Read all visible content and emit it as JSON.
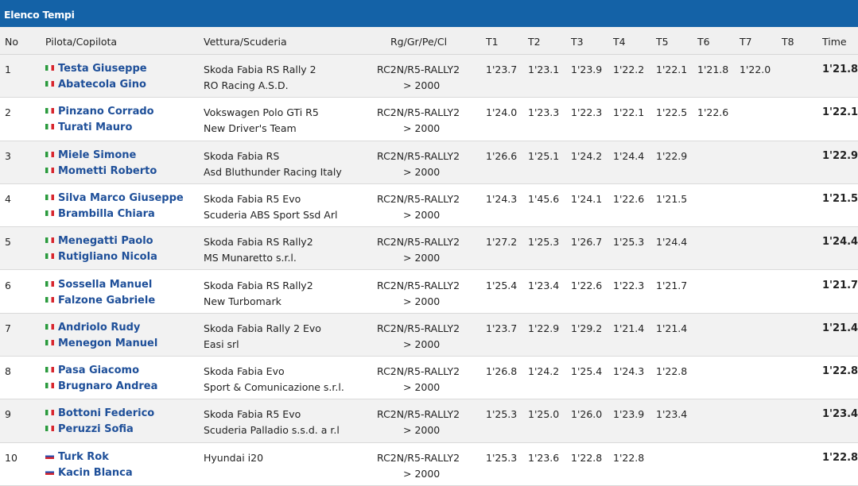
{
  "title": "Elenco Tempi",
  "headers": {
    "no": "No",
    "crew": "Pilota/Copilota",
    "car": "Vettura/Scuderia",
    "class": "Rg/Gr/Pe/Cl",
    "t1": "T1",
    "t2": "T2",
    "t3": "T3",
    "t4": "T4",
    "t5": "T5",
    "t6": "T6",
    "t7": "T7",
    "t8": "T8",
    "time": "Time"
  },
  "rows": [
    {
      "no": "1",
      "driver": "Testa Giuseppe",
      "codriver": "Abatecola Gino",
      "flag": "italy-flag",
      "car": "Skoda Fabia RS Rally 2",
      "team": "RO Racing A.S.D.",
      "class": "RC2N/R5-RALLY2",
      "class_sub": "> 2000",
      "t": [
        "1'23.7",
        "1'23.1",
        "1'23.9",
        "1'22.2",
        "1'22.1",
        "1'21.8",
        "1'22.0",
        ""
      ],
      "time": "1'21.8"
    },
    {
      "no": "2",
      "driver": "Pinzano Corrado",
      "codriver": "Turati Mauro",
      "flag": "italy-flag",
      "car": "Vokswagen Polo GTi R5",
      "team": "New Driver's Team",
      "class": "RC2N/R5-RALLY2",
      "class_sub": "> 2000",
      "t": [
        "1'24.0",
        "1'23.3",
        "1'22.3",
        "1'22.1",
        "1'22.5",
        "1'22.6",
        "",
        ""
      ],
      "time": "1'22.1"
    },
    {
      "no": "3",
      "driver": "Miele Simone",
      "codriver": "Mometti Roberto",
      "flag": "italy-flag",
      "car": "Skoda Fabia RS",
      "team": "Asd Bluthunder Racing Italy",
      "class": "RC2N/R5-RALLY2",
      "class_sub": "> 2000",
      "t": [
        "1'26.6",
        "1'25.1",
        "1'24.2",
        "1'24.4",
        "1'22.9",
        "",
        "",
        ""
      ],
      "time": "1'22.9"
    },
    {
      "no": "4",
      "driver": "Silva Marco Giuseppe",
      "codriver": "Brambilla Chiara",
      "flag": "italy-flag",
      "car": "Skoda Fabia R5 Evo",
      "team": "Scuderia ABS Sport Ssd Arl",
      "class": "RC2N/R5-RALLY2",
      "class_sub": "> 2000",
      "t": [
        "1'24.3",
        "1'45.6",
        "1'24.1",
        "1'22.6",
        "1'21.5",
        "",
        "",
        ""
      ],
      "time": "1'21.5"
    },
    {
      "no": "5",
      "driver": "Menegatti Paolo",
      "codriver": "Rutigliano Nicola",
      "flag": "italy-flag",
      "car": "Skoda Fabia RS Rally2",
      "team": "MS Munaretto s.r.l.",
      "class": "RC2N/R5-RALLY2",
      "class_sub": "> 2000",
      "t": [
        "1'27.2",
        "1'25.3",
        "1'26.7",
        "1'25.3",
        "1'24.4",
        "",
        "",
        ""
      ],
      "time": "1'24.4"
    },
    {
      "no": "6",
      "driver": "Sossella Manuel",
      "codriver": "Falzone Gabriele",
      "flag": "italy-flag",
      "car": "Skoda Fabia RS Rally2",
      "team": "New Turbomark",
      "class": "RC2N/R5-RALLY2",
      "class_sub": "> 2000",
      "t": [
        "1'25.4",
        "1'23.4",
        "1'22.6",
        "1'22.3",
        "1'21.7",
        "",
        "",
        ""
      ],
      "time": "1'21.7"
    },
    {
      "no": "7",
      "driver": "Andriolo Rudy",
      "codriver": "Menegon Manuel",
      "flag": "italy-flag",
      "car": "Skoda Fabia Rally 2 Evo",
      "team": "Easi srl",
      "class": "RC2N/R5-RALLY2",
      "class_sub": "> 2000",
      "t": [
        "1'23.7",
        "1'22.9",
        "1'29.2",
        "1'21.4",
        "1'21.4",
        "",
        "",
        ""
      ],
      "time": "1'21.4"
    },
    {
      "no": "8",
      "driver": "Pasa Giacomo",
      "codriver": "Brugnaro Andrea",
      "flag": "italy-flag",
      "car": "Skoda Fabia Evo",
      "team": "Sport & Comunicazione s.r.l.",
      "class": "RC2N/R5-RALLY2",
      "class_sub": "> 2000",
      "t": [
        "1'26.8",
        "1'24.2",
        "1'25.4",
        "1'24.3",
        "1'22.8",
        "",
        "",
        ""
      ],
      "time": "1'22.8"
    },
    {
      "no": "9",
      "driver": "Bottoni Federico",
      "codriver": "Peruzzi Sofia",
      "flag": "italy-flag",
      "car": "Skoda Fabia R5 Evo",
      "team": "Scuderia Palladio s.s.d. a r.l",
      "class": "RC2N/R5-RALLY2",
      "class_sub": "> 2000",
      "t": [
        "1'25.3",
        "1'25.0",
        "1'26.0",
        "1'23.9",
        "1'23.4",
        "",
        "",
        ""
      ],
      "time": "1'23.4"
    },
    {
      "no": "10",
      "driver": "Turk Rok",
      "codriver": "Kacin Blanca",
      "flag": "slovenia-flag",
      "car": "Hyundai i20",
      "team": "",
      "class": "RC2N/R5-RALLY2",
      "class_sub": "> 2000",
      "t": [
        "1'25.3",
        "1'23.6",
        "1'22.8",
        "1'22.8",
        "",
        "",
        "",
        ""
      ],
      "time": "1'22.8"
    }
  ]
}
